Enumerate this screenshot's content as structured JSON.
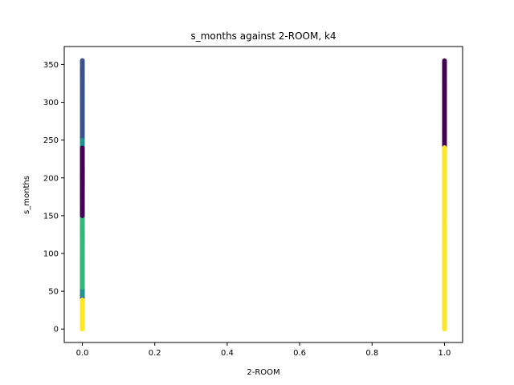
{
  "chart_data": {
    "type": "scatter",
    "title": "s_months against 2-ROOM, k4",
    "xlabel": "2-ROOM",
    "ylabel": "s_months",
    "xlim": [
      -0.05,
      1.05
    ],
    "ylim": [
      -17.8,
      373.8
    ],
    "x_ticks": [
      0.0,
      0.2,
      0.4,
      0.6,
      0.8,
      1.0
    ],
    "x_tick_labels": [
      "0.0",
      "0.2",
      "0.4",
      "0.6",
      "0.8",
      "1.0"
    ],
    "y_ticks": [
      0,
      50,
      100,
      150,
      200,
      250,
      300,
      350
    ],
    "y_tick_labels": [
      "0",
      "50",
      "100",
      "150",
      "200",
      "250",
      "300",
      "350"
    ],
    "grid": false,
    "colormap": "viridis",
    "clusters": [
      {
        "x": 0,
        "y_range": [
          40,
          356
        ],
        "color": "#3b528b"
      },
      {
        "x": 0,
        "y_range": [
          45,
          250
        ],
        "color": "#21918c"
      },
      {
        "x": 0,
        "y_range": [
          55,
          160
        ],
        "color": "#35b779"
      },
      {
        "x": 0,
        "y_range": [
          150,
          240
        ],
        "color": "#440154"
      },
      {
        "x": 0,
        "y_range": [
          0,
          40
        ],
        "color": "#fde725"
      },
      {
        "x": 1,
        "y_range": [
          235,
          356
        ],
        "color": "#440154"
      },
      {
        "x": 1,
        "y_range": [
          0,
          240
        ],
        "color": "#fde725"
      }
    ]
  }
}
